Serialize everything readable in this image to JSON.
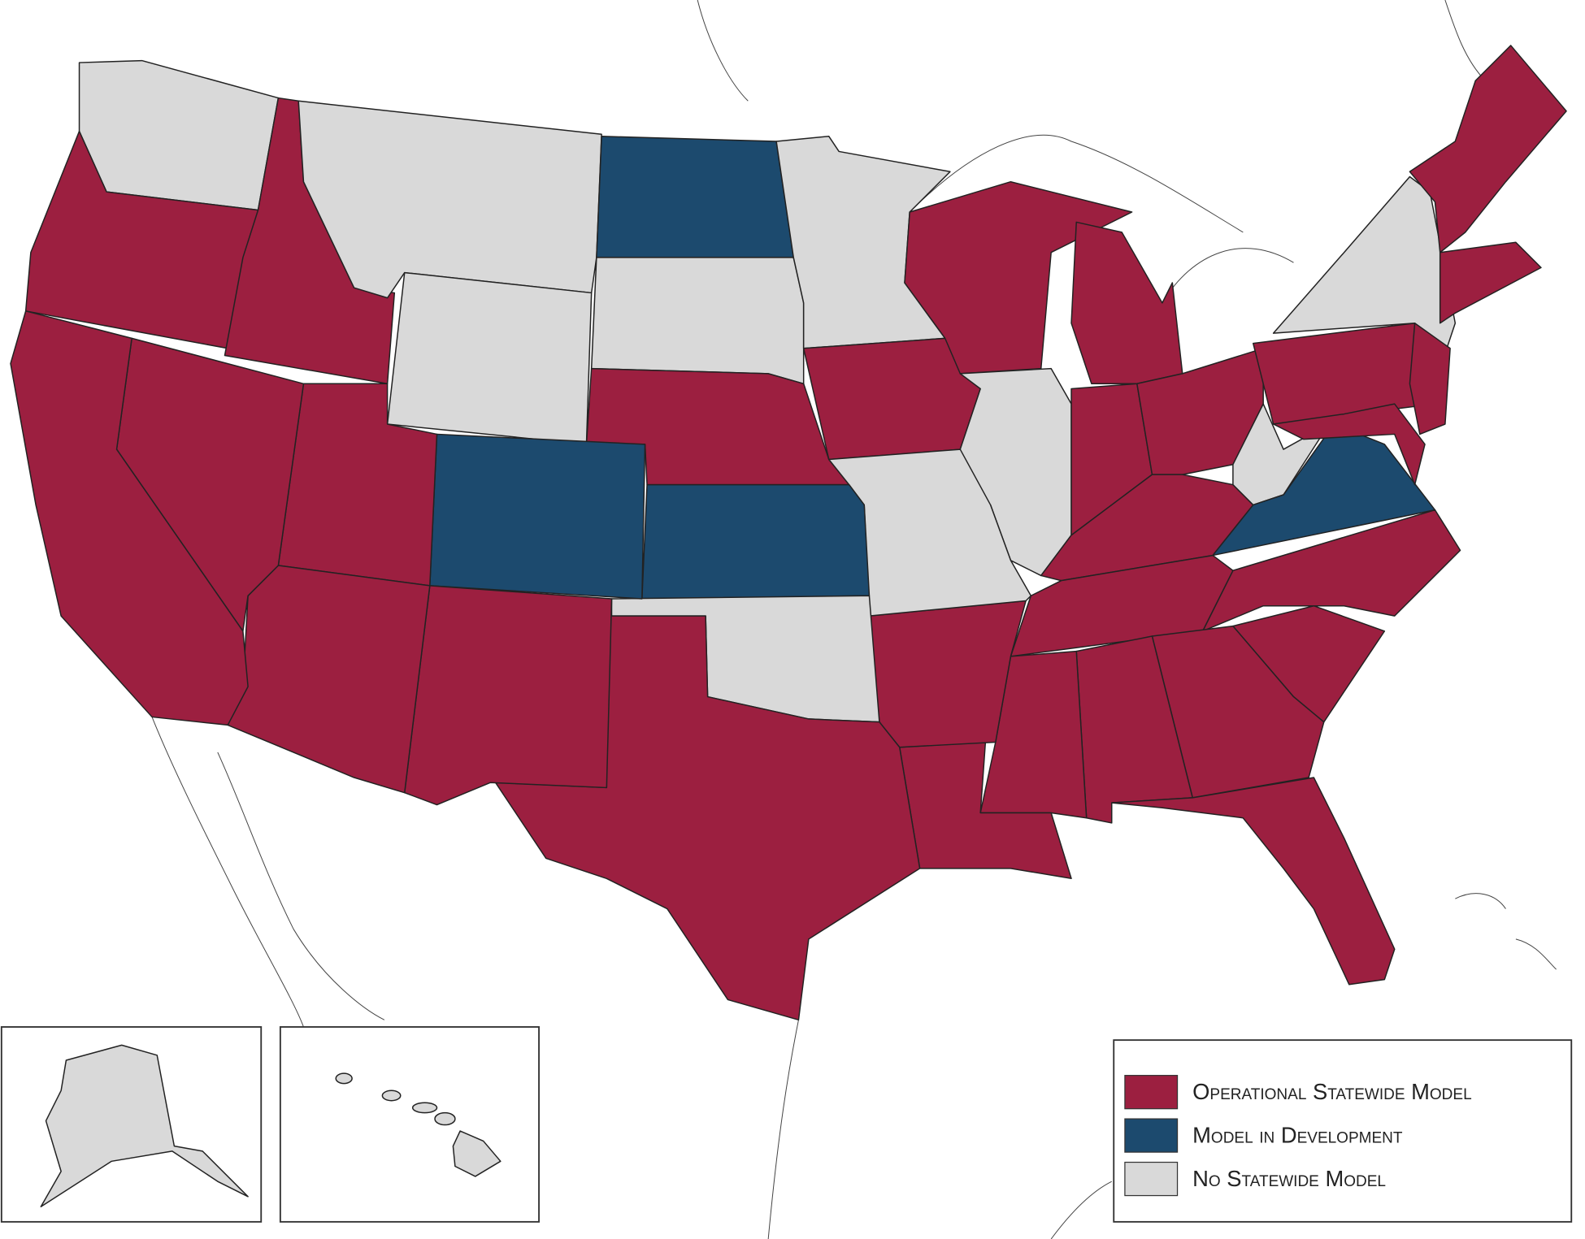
{
  "legend": {
    "items": [
      {
        "label": "Operational Statewide Model",
        "color": "#9c1f40"
      },
      {
        "label": "Model in Development",
        "color": "#1c4a6e"
      },
      {
        "label": "No Statewide Model",
        "color": "#d9d9d9"
      }
    ]
  }
}
